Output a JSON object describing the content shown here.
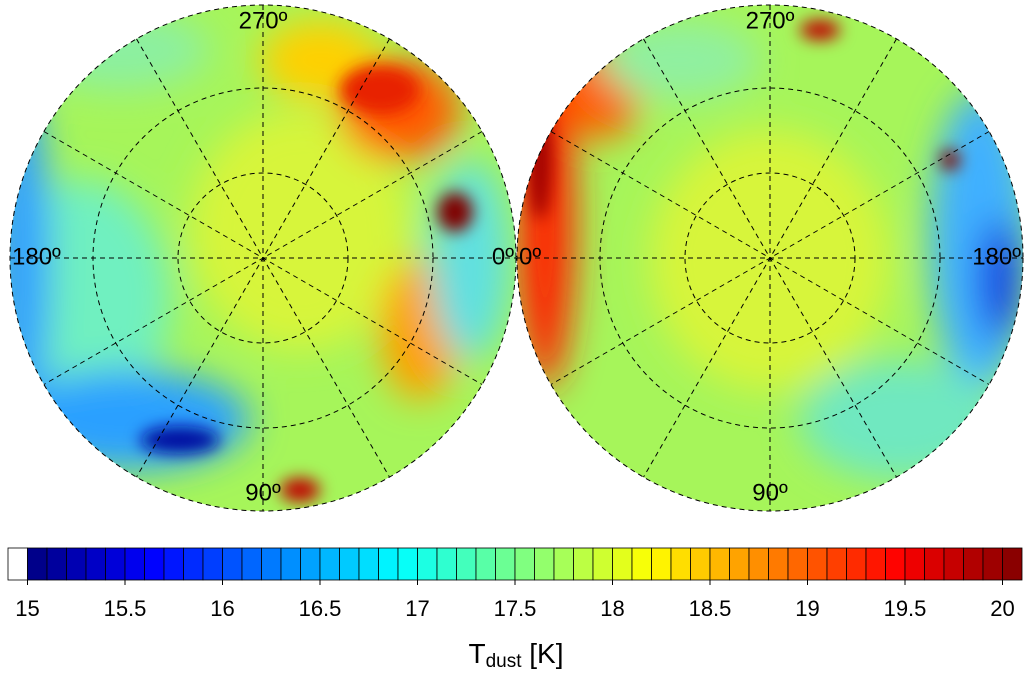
{
  "chart_data": {
    "type": "colorbar",
    "panels": [
      {
        "angle_labels": [
          "270º",
          "180º",
          "0º",
          "90º"
        ]
      },
      {
        "angle_labels": [
          "270º",
          "0º",
          "180º",
          "90º"
        ]
      }
    ],
    "colormap": "jet",
    "clim": [
      15,
      20.1
    ],
    "levels": [
      14.9,
      15,
      15.1,
      15.2,
      15.3,
      15.4,
      15.5,
      15.6,
      15.7,
      15.8,
      15.9,
      16,
      16.1,
      16.2,
      16.3,
      16.4,
      16.5,
      16.6,
      16.7,
      16.8,
      16.9,
      17,
      17.1,
      17.2,
      17.3,
      17.4,
      17.5,
      17.6,
      17.7,
      17.8,
      17.9,
      18,
      18.1,
      18.2,
      18.3,
      18.4,
      18.5,
      18.6,
      18.7,
      18.8,
      18.9,
      19,
      19.1,
      19.2,
      19.3,
      19.4,
      19.5,
      19.6,
      19.7,
      19.8,
      19.9,
      20,
      20.1
    ],
    "xlim": [
      14.9,
      20.1
    ],
    "xticks": [
      15,
      15.5,
      16,
      16.5,
      17,
      17.5,
      18,
      18.5,
      19,
      19.5,
      20
    ],
    "xlabel": "T",
    "xlabel_subscript": "dust",
    "xlabel_unit": "[K]"
  }
}
